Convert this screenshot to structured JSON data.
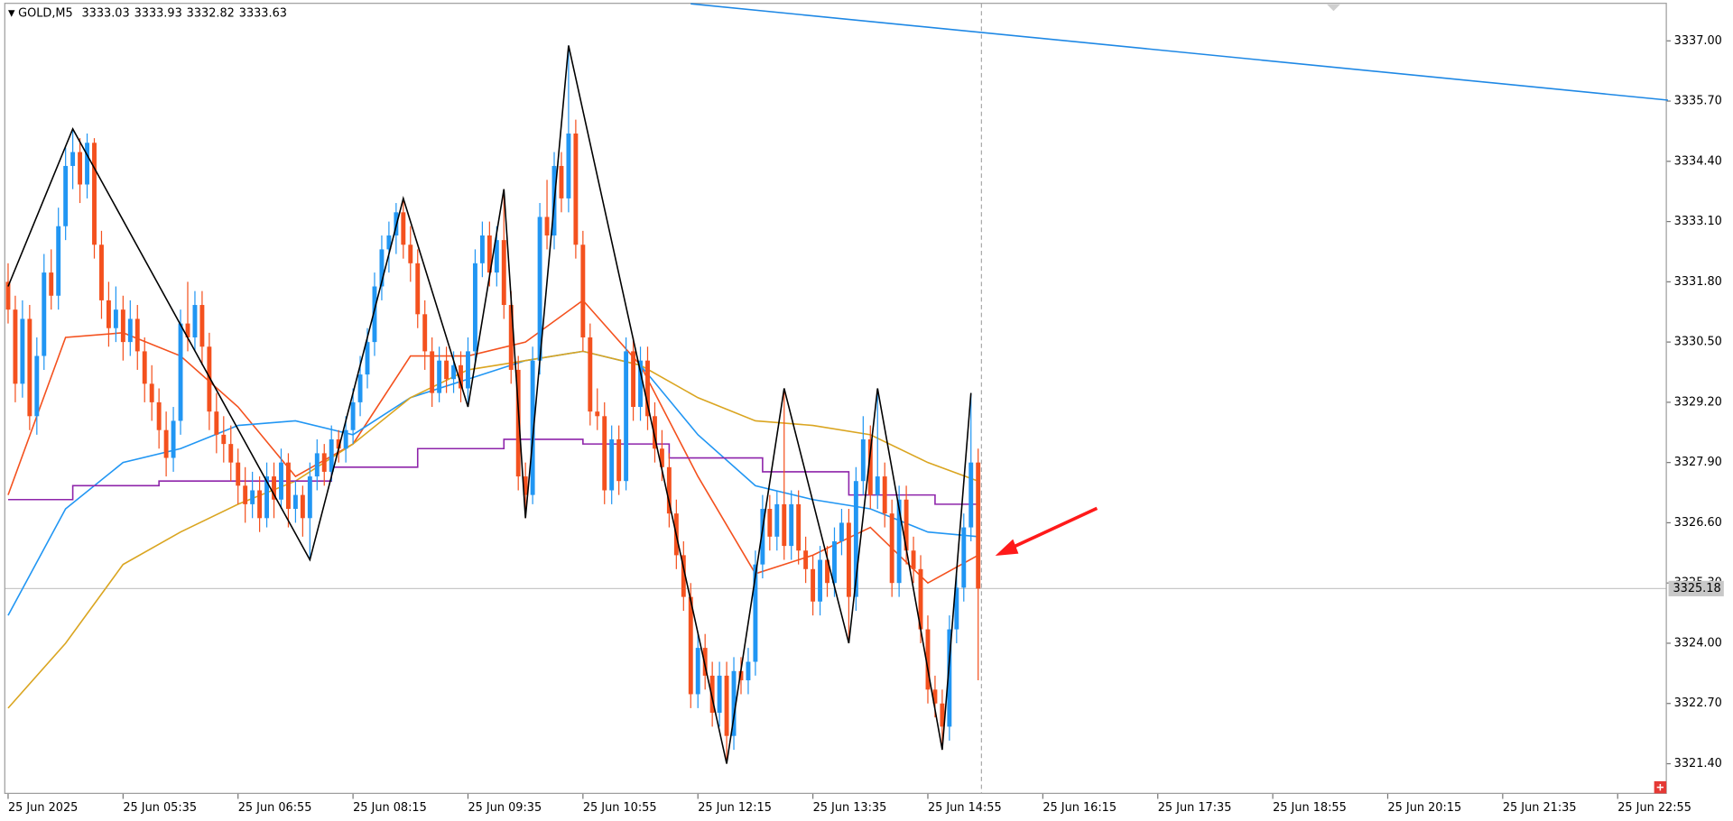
{
  "chart_data": {
    "type": "candlestick",
    "symbol": "GOLD,M5",
    "header_values": [
      {
        "value": 3333.03,
        "label": "3333.03"
      },
      {
        "value": 3333.93,
        "label": "3333.93"
      },
      {
        "value": 3332.82,
        "label": "3332.82"
      },
      {
        "value": 3333.63,
        "label": "3333.63"
      }
    ],
    "up_color": "#2196f3",
    "down_color": "#f4511e",
    "candles": [
      [
        3331.8,
        3332.2,
        3330.9,
        3331.2
      ],
      [
        3331.2,
        3331.5,
        3329.2,
        3329.6
      ],
      [
        3329.6,
        3331.4,
        3329.3,
        3331.0
      ],
      [
        3331.0,
        3331.3,
        3328.6,
        3328.9
      ],
      [
        3328.9,
        3330.6,
        3328.5,
        3330.2
      ],
      [
        3330.2,
        3332.4,
        3329.9,
        3332.0
      ],
      [
        3332.0,
        3332.5,
        3331.2,
        3331.5
      ],
      [
        3331.5,
        3333.4,
        3331.2,
        3333.0
      ],
      [
        3333.0,
        3334.7,
        3332.7,
        3334.3
      ],
      [
        3334.3,
        3335.1,
        3333.8,
        3334.6
      ],
      [
        3334.6,
        3334.9,
        3333.5,
        3333.9
      ],
      [
        3333.9,
        3335.0,
        3333.6,
        3334.8
      ],
      [
        3334.8,
        3334.9,
        3332.3,
        3332.6
      ],
      [
        3332.6,
        3332.9,
        3331.0,
        3331.4
      ],
      [
        3331.4,
        3331.8,
        3330.4,
        3330.8
      ],
      [
        3330.8,
        3331.7,
        3330.5,
        3331.2
      ],
      [
        3331.2,
        3331.5,
        3330.1,
        3330.5
      ],
      [
        3330.5,
        3331.4,
        3330.2,
        3331.0
      ],
      [
        3331.0,
        3331.3,
        3329.9,
        3330.3
      ],
      [
        3330.3,
        3330.6,
        3329.2,
        3329.6
      ],
      [
        3329.6,
        3330.0,
        3328.8,
        3329.2
      ],
      [
        3329.2,
        3329.5,
        3328.2,
        3328.6
      ],
      [
        3328.6,
        3329.0,
        3327.6,
        3328.0
      ],
      [
        3328.0,
        3329.1,
        3327.7,
        3328.8
      ],
      [
        3328.8,
        3331.2,
        3328.5,
        3330.9
      ],
      [
        3330.9,
        3331.8,
        3330.3,
        3330.6
      ],
      [
        3330.6,
        3331.6,
        3330.3,
        3331.3
      ],
      [
        3331.3,
        3331.6,
        3330.0,
        3330.4
      ],
      [
        3330.4,
        3330.7,
        3328.6,
        3329.0
      ],
      [
        3329.0,
        3329.4,
        3328.1,
        3328.5
      ],
      [
        3328.5,
        3328.9,
        3327.9,
        3328.3
      ],
      [
        3328.3,
        3328.7,
        3327.5,
        3327.9
      ],
      [
        3327.9,
        3328.2,
        3327.0,
        3327.4
      ],
      [
        3327.4,
        3327.8,
        3326.6,
        3327.0
      ],
      [
        3327.0,
        3327.7,
        3326.7,
        3327.3
      ],
      [
        3327.3,
        3327.6,
        3326.4,
        3326.7
      ],
      [
        3326.7,
        3327.9,
        3326.5,
        3327.6
      ],
      [
        3327.6,
        3327.9,
        3326.7,
        3327.1
      ],
      [
        3327.1,
        3328.2,
        3326.9,
        3327.9
      ],
      [
        3327.9,
        3328.1,
        3326.5,
        3326.9
      ],
      [
        3326.9,
        3327.5,
        3326.6,
        3327.2
      ],
      [
        3327.2,
        3327.4,
        3326.3,
        3326.7
      ],
      [
        3326.7,
        3327.9,
        3325.8,
        3327.6
      ],
      [
        3327.6,
        3328.4,
        3327.3,
        3328.1
      ],
      [
        3328.1,
        3328.3,
        3327.4,
        3327.7
      ],
      [
        3327.7,
        3328.7,
        3327.5,
        3328.4
      ],
      [
        3328.4,
        3328.6,
        3327.9,
        3328.2
      ],
      [
        3328.2,
        3328.9,
        3327.9,
        3328.6
      ],
      [
        3328.6,
        3329.5,
        3328.3,
        3329.2
      ],
      [
        3329.2,
        3330.2,
        3328.9,
        3329.8
      ],
      [
        3329.8,
        3330.8,
        3329.5,
        3330.5
      ],
      [
        3330.5,
        3332.0,
        3330.2,
        3331.7
      ],
      [
        3331.7,
        3332.8,
        3331.4,
        3332.5
      ],
      [
        3332.5,
        3333.1,
        3332.0,
        3332.8
      ],
      [
        3332.8,
        3333.5,
        3332.4,
        3333.3
      ],
      [
        3333.3,
        3333.6,
        3332.3,
        3332.6
      ],
      [
        3332.6,
        3333.0,
        3331.8,
        3332.2
      ],
      [
        3332.2,
        3332.5,
        3330.8,
        3331.1
      ],
      [
        3331.1,
        3331.4,
        3329.9,
        3330.3
      ],
      [
        3330.3,
        3330.6,
        3329.1,
        3329.4
      ],
      [
        3329.4,
        3330.4,
        3329.2,
        3330.1
      ],
      [
        3330.1,
        3330.4,
        3329.4,
        3329.7
      ],
      [
        3329.7,
        3330.3,
        3329.4,
        3330.0
      ],
      [
        3330.0,
        3330.3,
        3329.2,
        3329.5
      ],
      [
        3329.5,
        3330.6,
        3329.1,
        3330.3
      ],
      [
        3330.3,
        3332.5,
        3330.0,
        3332.2
      ],
      [
        3332.2,
        3333.1,
        3331.9,
        3332.8
      ],
      [
        3332.8,
        3333.1,
        3331.7,
        3332.0
      ],
      [
        3332.0,
        3333.0,
        3331.7,
        3332.7
      ],
      [
        3332.7,
        3333.8,
        3331.0,
        3331.3
      ],
      [
        3331.3,
        3331.6,
        3329.6,
        3329.9
      ],
      [
        3329.9,
        3330.2,
        3327.3,
        3327.6
      ],
      [
        3327.6,
        3327.9,
        3326.7,
        3327.2
      ],
      [
        3327.2,
        3330.4,
        3327.0,
        3330.1
      ],
      [
        3330.1,
        3333.5,
        3329.8,
        3333.2
      ],
      [
        3333.2,
        3334.0,
        3332.5,
        3332.8
      ],
      [
        3332.8,
        3334.6,
        3332.5,
        3334.3
      ],
      [
        3334.3,
        3334.6,
        3333.3,
        3333.6
      ],
      [
        3333.6,
        3336.9,
        3333.3,
        3335.0
      ],
      [
        3335.0,
        3335.3,
        3332.3,
        3332.6
      ],
      [
        3332.6,
        3332.9,
        3330.3,
        3330.6
      ],
      [
        3330.6,
        3330.9,
        3328.7,
        3329.0
      ],
      [
        3329.0,
        3329.5,
        3328.6,
        3328.9
      ],
      [
        3328.9,
        3329.2,
        3327.0,
        3327.3
      ],
      [
        3327.3,
        3328.7,
        3327.0,
        3328.4
      ],
      [
        3328.4,
        3328.7,
        3327.2,
        3327.5
      ],
      [
        3327.5,
        3330.6,
        3327.3,
        3330.3
      ],
      [
        3330.3,
        3330.6,
        3328.8,
        3329.1
      ],
      [
        3329.1,
        3330.4,
        3328.8,
        3330.1
      ],
      [
        3330.1,
        3330.4,
        3328.6,
        3328.9
      ],
      [
        3328.9,
        3329.2,
        3327.9,
        3328.2
      ],
      [
        3328.2,
        3328.6,
        3327.5,
        3327.8
      ],
      [
        3327.8,
        3328.1,
        3326.5,
        3326.8
      ],
      [
        3326.8,
        3327.1,
        3325.6,
        3325.9
      ],
      [
        3325.9,
        3326.2,
        3324.7,
        3325.0
      ],
      [
        3325.0,
        3325.3,
        3322.6,
        3322.9
      ],
      [
        3322.9,
        3324.2,
        3322.6,
        3323.9
      ],
      [
        3323.9,
        3324.2,
        3323.0,
        3323.3
      ],
      [
        3323.3,
        3323.6,
        3322.2,
        3322.5
      ],
      [
        3322.5,
        3323.6,
        3322.2,
        3323.3
      ],
      [
        3323.3,
        3323.6,
        3321.4,
        3322.0
      ],
      [
        3322.0,
        3323.7,
        3321.7,
        3323.4
      ],
      [
        3323.4,
        3323.7,
        3322.9,
        3323.2
      ],
      [
        3323.2,
        3323.9,
        3322.9,
        3323.6
      ],
      [
        3323.6,
        3326.0,
        3323.3,
        3325.7
      ],
      [
        3325.7,
        3327.2,
        3325.4,
        3326.9
      ],
      [
        3326.9,
        3327.2,
        3326.0,
        3326.3
      ],
      [
        3326.3,
        3327.3,
        3326.0,
        3327.0
      ],
      [
        3327.0,
        3329.5,
        3325.8,
        3326.1
      ],
      [
        3326.1,
        3327.3,
        3325.8,
        3327.0
      ],
      [
        3327.0,
        3327.3,
        3325.7,
        3326.0
      ],
      [
        3326.0,
        3326.3,
        3325.3,
        3325.6
      ],
      [
        3325.6,
        3325.9,
        3324.6,
        3324.9
      ],
      [
        3324.9,
        3326.1,
        3324.6,
        3325.8
      ],
      [
        3325.8,
        3326.1,
        3325.0,
        3325.3
      ],
      [
        3325.3,
        3326.5,
        3325.0,
        3326.2
      ],
      [
        3326.2,
        3326.9,
        3325.9,
        3326.6
      ],
      [
        3326.6,
        3326.9,
        3324.0,
        3325.0
      ],
      [
        3325.0,
        3327.8,
        3324.7,
        3327.5
      ],
      [
        3327.5,
        3328.9,
        3327.2,
        3328.4
      ],
      [
        3328.4,
        3328.7,
        3326.9,
        3327.2
      ],
      [
        3327.2,
        3329.5,
        3326.9,
        3327.6
      ],
      [
        3327.6,
        3327.9,
        3326.5,
        3326.8
      ],
      [
        3326.8,
        3327.1,
        3325.0,
        3325.3
      ],
      [
        3325.3,
        3327.4,
        3325.0,
        3327.1
      ],
      [
        3327.1,
        3327.4,
        3325.7,
        3326.0
      ],
      [
        3326.0,
        3326.3,
        3325.3,
        3325.6
      ],
      [
        3325.6,
        3325.9,
        3324.0,
        3324.3
      ],
      [
        3324.3,
        3324.6,
        3322.7,
        3323.0
      ],
      [
        3323.0,
        3323.3,
        3322.4,
        3322.7
      ],
      [
        3322.7,
        3323.0,
        3321.7,
        3322.2
      ],
      [
        3322.2,
        3324.6,
        3321.9,
        3324.3
      ],
      [
        3324.3,
        3325.5,
        3324.0,
        3325.2
      ],
      [
        3325.2,
        3326.8,
        3324.9,
        3326.5
      ],
      [
        3326.5,
        3329.4,
        3326.2,
        3327.9
      ],
      [
        3327.9,
        3328.2,
        3323.2,
        3325.18
      ]
    ],
    "series": [
      {
        "color": "#f4511e",
        "x": [
          0,
          8,
          16,
          24,
          32,
          40,
          48,
          56,
          64,
          72,
          80,
          88,
          96,
          104,
          112,
          120,
          128,
          135
        ],
        "values": [
          3327.2,
          3330.6,
          3330.7,
          3330.2,
          3329.1,
          3327.6,
          3328.3,
          3330.2,
          3330.2,
          3330.5,
          3331.4,
          3330.0,
          3327.6,
          3325.5,
          3325.9,
          3326.5,
          3325.3,
          3325.9
        ]
      },
      {
        "color": "#2196f3",
        "x": [
          0,
          8,
          16,
          24,
          32,
          40,
          48,
          56,
          64,
          72,
          80,
          88,
          96,
          104,
          112,
          120,
          128,
          135
        ],
        "values": [
          3324.6,
          3326.9,
          3327.9,
          3328.2,
          3328.7,
          3328.8,
          3328.5,
          3329.3,
          3329.7,
          3330.1,
          3330.3,
          3330.0,
          3328.5,
          3327.4,
          3327.1,
          3326.9,
          3326.4,
          3326.3
        ]
      },
      {
        "color": "#daa520",
        "x": [
          0,
          8,
          16,
          24,
          32,
          40,
          48,
          56,
          64,
          72,
          80,
          88,
          96,
          104,
          112,
          120,
          128,
          135
        ],
        "values": [
          3322.6,
          3324.0,
          3325.7,
          3326.4,
          3327.0,
          3327.5,
          3328.3,
          3329.3,
          3329.9,
          3330.1,
          3330.3,
          3330.0,
          3329.3,
          3328.8,
          3328.7,
          3328.5,
          3327.9,
          3327.5
        ]
      },
      {
        "color": "#8e24aa",
        "step": true,
        "x": [
          0,
          9,
          21,
          45,
          57,
          69,
          80,
          92,
          105,
          117,
          129,
          135
        ],
        "values": [
          3327.1,
          3327.4,
          3327.5,
          3327.8,
          3328.2,
          3328.4,
          3328.3,
          3328.0,
          3327.7,
          3327.2,
          3327.0,
          3327.0
        ]
      },
      {
        "color": "#000000",
        "x": [
          0,
          9,
          42,
          55,
          64,
          69,
          72,
          78,
          100,
          108,
          117,
          121,
          130,
          134
        ],
        "values": [
          3331.7,
          3335.1,
          3325.8,
          3333.6,
          3329.1,
          3333.8,
          3326.7,
          3336.9,
          3321.4,
          3329.5,
          3324.0,
          3329.5,
          3321.7,
          3329.4
        ]
      },
      {
        "color": "#1e88e5",
        "x": [
          95,
          231
        ],
        "values": [
          3337.8,
          3335.72
        ]
      }
    ],
    "current_price": {
      "value": 3325.18,
      "label": "3325.18"
    },
    "xlim": [
      0,
      231
    ],
    "ylim": [
      3320.76,
      3337.81
    ],
    "xticks": [
      {
        "value": 0,
        "label": "25 Jun 2025"
      },
      {
        "value": 16,
        "label": "25 Jun 05:35"
      },
      {
        "value": 32,
        "label": "25 Jun 06:55"
      },
      {
        "value": 48,
        "label": "25 Jun 08:15"
      },
      {
        "value": 64,
        "label": "25 Jun 09:35"
      },
      {
        "value": 80,
        "label": "25 Jun 10:55"
      },
      {
        "value": 96,
        "label": "25 Jun 12:15"
      },
      {
        "value": 112,
        "label": "25 Jun 13:35"
      },
      {
        "value": 128,
        "label": "25 Jun 14:55"
      },
      {
        "value": 144,
        "label": "25 Jun 16:15"
      },
      {
        "value": 160,
        "label": "25 Jun 17:35"
      },
      {
        "value": 176,
        "label": "25 Jun 18:55"
      },
      {
        "value": 192,
        "label": "25 Jun 20:15"
      },
      {
        "value": 208,
        "label": "25 Jun 21:35"
      },
      {
        "value": 224,
        "label": "25 Jun 22:55"
      }
    ],
    "yticks": [
      {
        "value": 3321.4,
        "label": "3321.40"
      },
      {
        "value": 3322.7,
        "label": "3322.70"
      },
      {
        "value": 3324.0,
        "label": "3324.00"
      },
      {
        "value": 3325.3,
        "label": "3325.30"
      },
      {
        "value": 3326.6,
        "label": "3326.60"
      },
      {
        "value": 3327.9,
        "label": "3327.90"
      },
      {
        "value": 3329.2,
        "label": "3329.20"
      },
      {
        "value": 3330.5,
        "label": "3330.50"
      },
      {
        "value": 3331.8,
        "label": "3331.80"
      },
      {
        "value": 3333.1,
        "label": "3333.10"
      },
      {
        "value": 3334.4,
        "label": "3334.40"
      },
      {
        "value": 3335.7,
        "label": "3335.70"
      },
      {
        "value": 3337.0,
        "label": "3337.00"
      }
    ]
  }
}
